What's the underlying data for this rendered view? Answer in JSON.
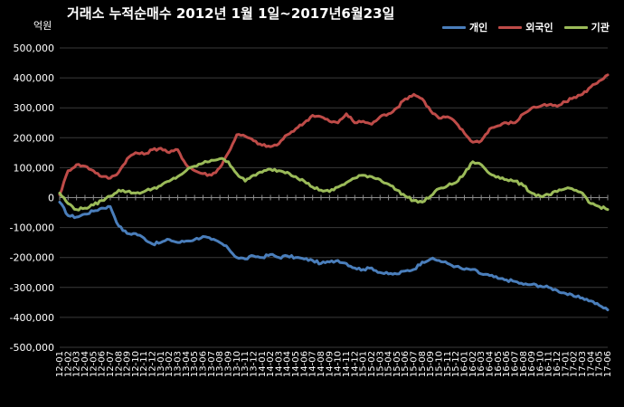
{
  "chart_data": {
    "type": "line",
    "title": "거래소 누적순매수 2012년 1월 1일~2017년6월23일",
    "unit_label": "억원",
    "xlabel": "",
    "ylabel": "",
    "ylim": [
      -500000,
      500000
    ],
    "grid": true,
    "legend_position": "top-right",
    "yticks": [
      {
        "value": 500000,
        "label": "500,000"
      },
      {
        "value": 400000,
        "label": "400,000"
      },
      {
        "value": 300000,
        "label": "300,000"
      },
      {
        "value": 200000,
        "label": "200,000"
      },
      {
        "value": 100000,
        "label": "100,000"
      },
      {
        "value": 0,
        "label": "0"
      },
      {
        "value": -100000,
        "label": "-100,000"
      },
      {
        "value": -200000,
        "label": "-200,000"
      },
      {
        "value": -300000,
        "label": "-300,000"
      },
      {
        "value": -400000,
        "label": "-400,000"
      },
      {
        "value": -500000,
        "label": "-500,000"
      }
    ],
    "categories": [
      "12-01",
      "12-02",
      "12-03",
      "12-04",
      "12-05",
      "12-06",
      "12-07",
      "12-08",
      "12-09",
      "12-10",
      "12-11",
      "12-12",
      "13-01",
      "13-02",
      "13-03",
      "13-04",
      "13-05",
      "13-06",
      "13-07",
      "13-08",
      "13-09",
      "13-10",
      "13-11",
      "13-12",
      "14-01",
      "14-02",
      "14-03",
      "14-04",
      "14-05",
      "14-06",
      "14-07",
      "14-08",
      "14-09",
      "14-10",
      "14-11",
      "14-12",
      "15-01",
      "15-02",
      "15-03",
      "15-04",
      "15-05",
      "15-06",
      "15-07",
      "15-08",
      "15-09",
      "15-10",
      "15-11",
      "15-12",
      "16-01",
      "16-02",
      "16-03",
      "16-04",
      "16-05",
      "16-06",
      "16-07",
      "16-08",
      "16-09",
      "16-10",
      "16-11",
      "16-12",
      "17-01",
      "17-02",
      "17-03",
      "17-04",
      "17-05",
      "17-06"
    ],
    "series": [
      {
        "name": "개인",
        "color": "#4a7ebb",
        "values": [
          -15000,
          -60000,
          -65000,
          -55000,
          -45000,
          -35000,
          -30000,
          -95000,
          -120000,
          -120000,
          -135000,
          -155000,
          -150000,
          -140000,
          -150000,
          -145000,
          -140000,
          -130000,
          -140000,
          -150000,
          -170000,
          -200000,
          -205000,
          -195000,
          -200000,
          -190000,
          -200000,
          -195000,
          -200000,
          -205000,
          -210000,
          -220000,
          -215000,
          -210000,
          -220000,
          -235000,
          -240000,
          -235000,
          -250000,
          -255000,
          -255000,
          -245000,
          -240000,
          -215000,
          -205000,
          -210000,
          -220000,
          -230000,
          -240000,
          -240000,
          -255000,
          -260000,
          -270000,
          -275000,
          -280000,
          -290000,
          -290000,
          -295000,
          -300000,
          -310000,
          -320000,
          -330000,
          -335000,
          -345000,
          -360000,
          -375000
        ]
      },
      {
        "name": "외국인",
        "color": "#be4b48",
        "values": [
          10000,
          90000,
          110000,
          105000,
          90000,
          70000,
          65000,
          85000,
          130000,
          150000,
          145000,
          160000,
          165000,
          150000,
          160000,
          110000,
          90000,
          80000,
          75000,
          100000,
          150000,
          210000,
          205000,
          190000,
          175000,
          170000,
          180000,
          210000,
          230000,
          250000,
          275000,
          270000,
          255000,
          250000,
          280000,
          250000,
          255000,
          245000,
          270000,
          280000,
          300000,
          330000,
          345000,
          330000,
          290000,
          265000,
          270000,
          250000,
          215000,
          185000,
          190000,
          230000,
          240000,
          250000,
          250000,
          280000,
          300000,
          305000,
          310000,
          305000,
          320000,
          335000,
          345000,
          370000,
          390000,
          410000
        ]
      },
      {
        "name": "기관",
        "color": "#9bbb59",
        "values": [
          15000,
          -20000,
          -40000,
          -35000,
          -25000,
          -10000,
          5000,
          25000,
          20000,
          15000,
          20000,
          30000,
          40000,
          55000,
          70000,
          90000,
          105000,
          115000,
          125000,
          130000,
          120000,
          80000,
          55000,
          75000,
          85000,
          95000,
          90000,
          85000,
          70000,
          55000,
          35000,
          25000,
          20000,
          35000,
          50000,
          65000,
          75000,
          70000,
          60000,
          45000,
          25000,
          5000,
          -10000,
          -15000,
          5000,
          30000,
          40000,
          50000,
          80000,
          120000,
          110000,
          80000,
          70000,
          60000,
          55000,
          40000,
          15000,
          5000,
          10000,
          20000,
          30000,
          25000,
          15000,
          -20000,
          -30000,
          -40000
        ]
      }
    ]
  }
}
